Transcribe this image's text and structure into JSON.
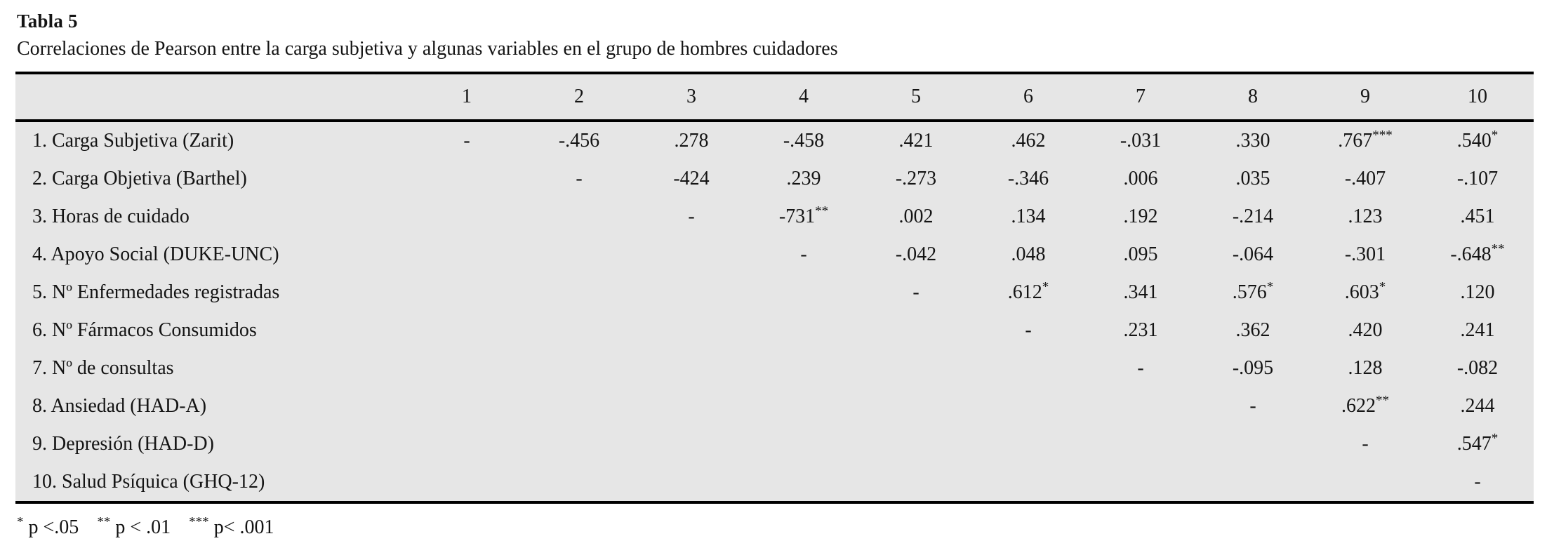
{
  "caption": {
    "label": "Tabla 5",
    "title": "Correlaciones de Pearson entre la carga subjetiva y algunas variables en el grupo de hombres cuidadores"
  },
  "chart_data": {
    "type": "table",
    "title": "Correlaciones de Pearson entre la carga subjetiva y algunas variables en el grupo de hombres cuidadores",
    "column_headers": [
      "1",
      "2",
      "3",
      "4",
      "5",
      "6",
      "7",
      "8",
      "9",
      "10"
    ],
    "rows": [
      {
        "label": "1. Carga Subjetiva (Zarit)",
        "values": [
          "-",
          "-.456",
          ".278",
          "-.458",
          ".421",
          ".462",
          "-.031",
          ".330",
          ".767***",
          ".540*"
        ]
      },
      {
        "label": "2. Carga Objetiva (Barthel)",
        "values": [
          "",
          "-",
          "-424",
          ".239",
          "-.273",
          "-.346",
          ".006",
          ".035",
          "-.407",
          "-.107"
        ]
      },
      {
        "label": "3. Horas de cuidado",
        "values": [
          "",
          "",
          "-",
          "-731**",
          ".002",
          ".134",
          ".192",
          "-.214",
          ".123",
          ".451"
        ]
      },
      {
        "label": "4. Apoyo Social (DUKE-UNC)",
        "values": [
          "",
          "",
          "",
          "-",
          "-.042",
          ".048",
          ".095",
          "-.064",
          "-.301",
          "-.648**"
        ]
      },
      {
        "label": "5. Nº Enfermedades registradas",
        "values": [
          "",
          "",
          "",
          "",
          "-",
          ".612*",
          ".341",
          ".576*",
          ".603*",
          ".120"
        ]
      },
      {
        "label": "6. Nº Fármacos Consumidos",
        "values": [
          "",
          "",
          "",
          "",
          "",
          "-",
          ".231",
          ".362",
          ".420",
          ".241"
        ]
      },
      {
        "label": "7. Nº de consultas",
        "values": [
          "",
          "",
          "",
          "",
          "",
          "",
          "-",
          "-.095",
          ".128",
          "-.082"
        ]
      },
      {
        "label": "8. Ansiedad (HAD-A)",
        "values": [
          "",
          "",
          "",
          "",
          "",
          "",
          "",
          "-",
          ".622**",
          ".244"
        ]
      },
      {
        "label": "9. Depresión (HAD-D)",
        "values": [
          "",
          "",
          "",
          "",
          "",
          "",
          "",
          "",
          "-",
          ".547*"
        ]
      },
      {
        "label": "10. Salud Psíquica (GHQ-12)",
        "values": [
          "",
          "",
          "",
          "",
          "",
          "",
          "",
          "",
          "",
          "-"
        ]
      }
    ],
    "footnote_segments": [
      {
        "marker": "*",
        "text": "p <.05"
      },
      {
        "marker": "**",
        "text": "p < .01"
      },
      {
        "marker": "***",
        "text": "p< .001"
      }
    ],
    "colors": {
      "table_background": "#e6e6e6",
      "rule": "#000000",
      "text": "#141414",
      "page_background": "#ffffff"
    }
  }
}
